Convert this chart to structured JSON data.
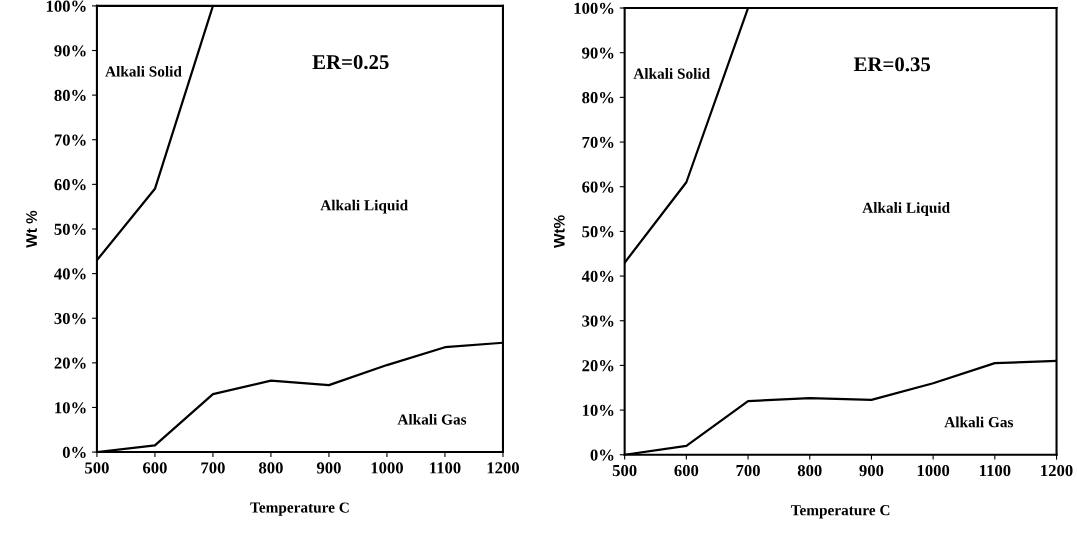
{
  "chart_data": [
    {
      "type": "line",
      "xlabel": "Temperature C",
      "ylabel": "Wt %",
      "series": [
        {
          "color": "#000000",
          "x": [
            500,
            600,
            700
          ],
          "values": [
            43,
            59,
            100
          ]
        },
        {
          "color": "#000000",
          "x": [
            500,
            600,
            700,
            800,
            900,
            1000,
            1100,
            1200
          ],
          "values": [
            0,
            1.5,
            13,
            16,
            15,
            19.5,
            23.5,
            24.5
          ]
        }
      ],
      "annotations": [
        "ER=0.25",
        "Alkali Solid",
        "Alkali Liquid",
        "Alkali Gas"
      ],
      "xlim": [
        500,
        1200
      ],
      "xticks": [
        500,
        600,
        700,
        800,
        900,
        1000,
        1100,
        1200
      ],
      "ylim": [
        0,
        100
      ],
      "yticks": [
        {
          "value": 0,
          "label": "0%"
        },
        {
          "value": 10,
          "label": "10%"
        },
        {
          "value": 20,
          "label": "20%"
        },
        {
          "value": 30,
          "label": "30%"
        },
        {
          "value": 40,
          "label": "40%"
        },
        {
          "value": 50,
          "label": "50%"
        },
        {
          "value": 60,
          "label": "60%"
        },
        {
          "value": 70,
          "label": "70%"
        },
        {
          "value": 80,
          "label": "80%"
        },
        {
          "value": 90,
          "label": "90%"
        },
        {
          "value": 100,
          "label": "100%"
        }
      ],
      "grid": false,
      "legend": false
    },
    {
      "type": "line",
      "xlabel": "Temperature C",
      "ylabel": "Wt%",
      "series": [
        {
          "color": "#000000",
          "x": [
            500,
            600,
            700
          ],
          "values": [
            43,
            61,
            100
          ]
        },
        {
          "color": "#000000",
          "x": [
            500,
            600,
            700,
            800,
            900,
            1000,
            1100,
            1200
          ],
          "values": [
            0,
            2,
            12,
            12.7,
            12.3,
            16,
            20.5,
            21
          ]
        }
      ],
      "annotations": [
        "ER=0.35",
        "Alkali Solid",
        "Alkali Liquid",
        "Alkali Gas"
      ],
      "xlim": [
        500,
        1200
      ],
      "xticks": [
        500,
        600,
        700,
        800,
        900,
        1000,
        1100,
        1200
      ],
      "ylim": [
        0,
        100
      ],
      "yticks": [
        {
          "value": 0,
          "label": "0%"
        },
        {
          "value": 10,
          "label": "10%"
        },
        {
          "value": 20,
          "label": "20%"
        },
        {
          "value": 30,
          "label": "30%"
        },
        {
          "value": 40,
          "label": "40%"
        },
        {
          "value": 50,
          "label": "50%"
        },
        {
          "value": 60,
          "label": "60%"
        },
        {
          "value": 70,
          "label": "70%"
        },
        {
          "value": 80,
          "label": "80%"
        },
        {
          "value": 90,
          "label": "90%"
        },
        {
          "value": 100,
          "label": "100%"
        }
      ],
      "grid": false,
      "legend": false
    }
  ]
}
